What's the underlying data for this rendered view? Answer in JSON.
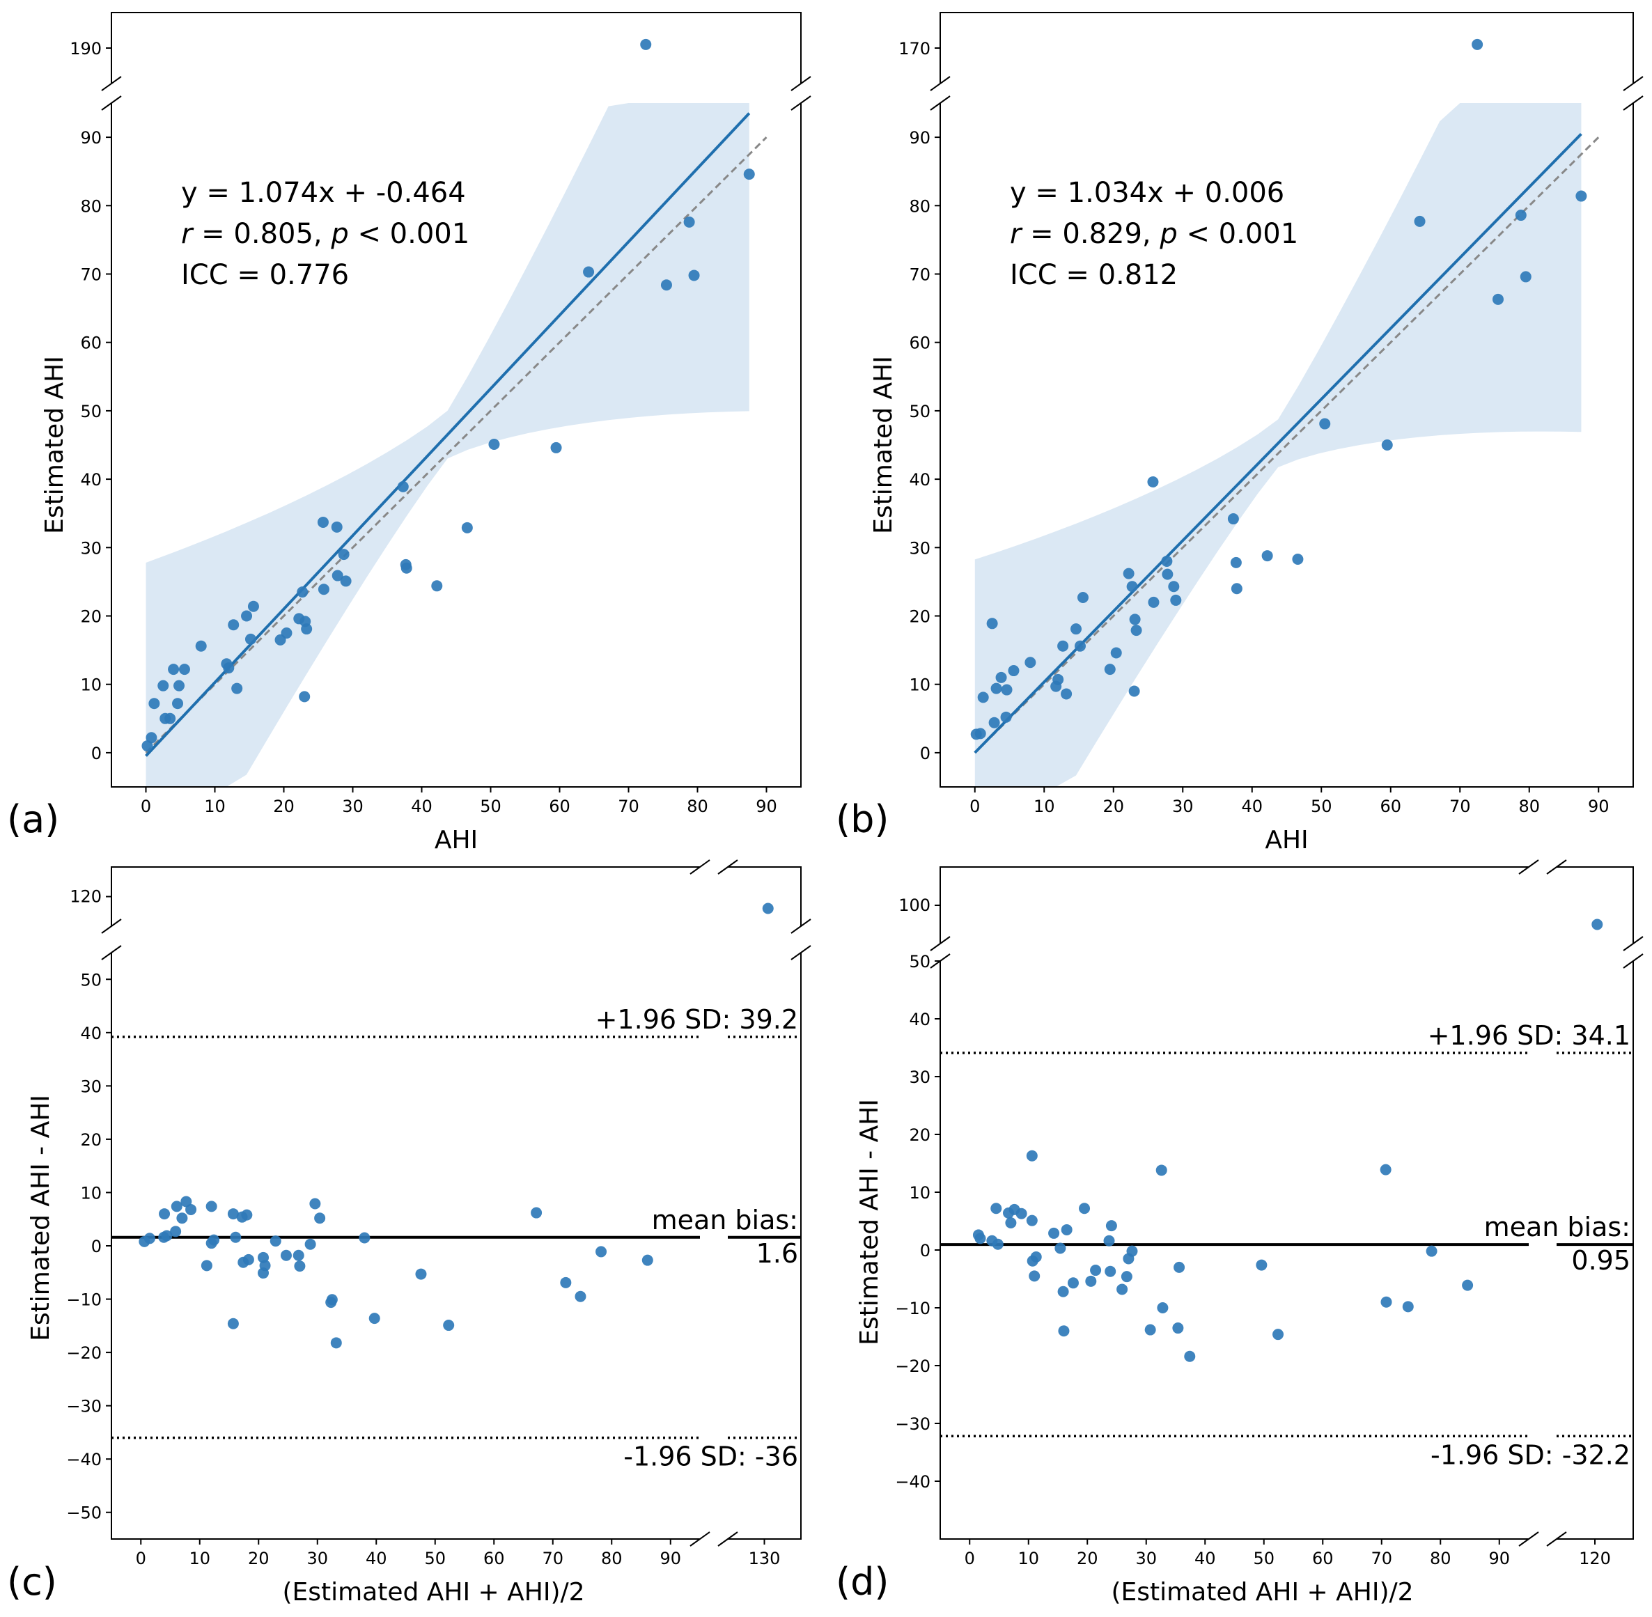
{
  "chart_data": [
    {
      "type": "scatter",
      "panel_label": "(a)",
      "xlabel": "AHI",
      "ylabel": "Estimated AHI",
      "xlim": [
        -5,
        95
      ],
      "ylim": [
        -5,
        95
      ],
      "ylim_break": [
        185,
        195
      ],
      "xticks": [
        "0",
        "10",
        "20",
        "30",
        "40",
        "50",
        "60",
        "70",
        "80",
        "90"
      ],
      "yticks": [
        "0",
        "10",
        "20",
        "30",
        "40",
        "50",
        "60",
        "70",
        "80",
        "90"
      ],
      "yticks_break": [
        "190"
      ],
      "equation": "y = 1.074x + -0.464",
      "r_text": "r",
      "stats_text": " = 0.805, ",
      "p_text": "p",
      "p_value_text": " < 0.001",
      "icc_text": "ICC = 0.776",
      "regression": {
        "slope": 1.074,
        "intercept": -0.464,
        "x_range": [
          0,
          87.5
        ]
      },
      "identity_line": {
        "x_range": [
          0,
          90
        ]
      },
      "points": [
        [
          0.2,
          1
        ],
        [
          0.8,
          2.2
        ],
        [
          1.2,
          7.2
        ],
        [
          2.5,
          9.8
        ],
        [
          2.8,
          5
        ],
        [
          3.5,
          5
        ],
        [
          4,
          12.2
        ],
        [
          4.6,
          7.2
        ],
        [
          4.8,
          9.8
        ],
        [
          5.6,
          12.2
        ],
        [
          8,
          15.6
        ],
        [
          11.7,
          13
        ],
        [
          12,
          12.4
        ],
        [
          12.7,
          18.7
        ],
        [
          13.2,
          9.4
        ],
        [
          14.6,
          20
        ],
        [
          15.2,
          16.6
        ],
        [
          15.6,
          21.4
        ],
        [
          19.5,
          16.5
        ],
        [
          20.4,
          17.5
        ],
        [
          22.2,
          19.6
        ],
        [
          22.7,
          23.5
        ],
        [
          23,
          8.2
        ],
        [
          23.1,
          19.2
        ],
        [
          23.3,
          18.1
        ],
        [
          25.7,
          33.7
        ],
        [
          25.8,
          23.9
        ],
        [
          27.7,
          33
        ],
        [
          27.8,
          25.9
        ],
        [
          28.7,
          29
        ],
        [
          29,
          25.1
        ],
        [
          37.3,
          38.9
        ],
        [
          37.7,
          27.5
        ],
        [
          37.8,
          27
        ],
        [
          42.2,
          24.4
        ],
        [
          46.6,
          32.9
        ],
        [
          50.5,
          45.1
        ],
        [
          59.5,
          44.6
        ],
        [
          64.2,
          70.3
        ],
        [
          75.5,
          68.4
        ],
        [
          78.8,
          77.6
        ],
        [
          79.5,
          69.8
        ],
        [
          87.5,
          84.6
        ]
      ],
      "outliers": [
        [
          72.5,
          190.5
        ]
      ]
    },
    {
      "type": "scatter",
      "panel_label": "(b)",
      "xlabel": "AHI",
      "ylabel": "Estimated AHI",
      "xlim": [
        -5,
        95
      ],
      "ylim": [
        -5,
        95
      ],
      "ylim_break": [
        165,
        175
      ],
      "xticks": [
        "0",
        "10",
        "20",
        "30",
        "40",
        "50",
        "60",
        "70",
        "80",
        "90"
      ],
      "yticks": [
        "0",
        "10",
        "20",
        "30",
        "40",
        "50",
        "60",
        "70",
        "80",
        "90"
      ],
      "yticks_break": [
        "170"
      ],
      "equation": "y = 1.034x + 0.006",
      "r_text": "r",
      "stats_text": " = 0.829, ",
      "p_text": "p",
      "p_value_text": " < 0.001",
      "icc_text": "ICC = 0.812",
      "regression": {
        "slope": 1.034,
        "intercept": 0.006,
        "x_range": [
          0,
          87.5
        ]
      },
      "identity_line": {
        "x_range": [
          0,
          90
        ]
      },
      "points": [
        [
          0.2,
          2.7
        ],
        [
          0.8,
          2.8
        ],
        [
          1.2,
          8.1
        ],
        [
          2.5,
          18.9
        ],
        [
          2.8,
          4.4
        ],
        [
          3.1,
          9.4
        ],
        [
          3.8,
          11
        ],
        [
          4.5,
          5.2
        ],
        [
          4.6,
          9.2
        ],
        [
          5.6,
          12
        ],
        [
          8,
          13.2
        ],
        [
          11.7,
          9.7
        ],
        [
          12,
          10.7
        ],
        [
          12.7,
          15.6
        ],
        [
          13.2,
          8.6
        ],
        [
          14.6,
          18.1
        ],
        [
          15.2,
          15.6
        ],
        [
          15.6,
          22.7
        ],
        [
          19.5,
          12.2
        ],
        [
          20.4,
          14.6
        ],
        [
          22.2,
          26.2
        ],
        [
          22.7,
          24.3
        ],
        [
          23,
          9
        ],
        [
          23.1,
          19.5
        ],
        [
          23.3,
          17.9
        ],
        [
          25.7,
          39.6
        ],
        [
          25.8,
          22
        ],
        [
          27.7,
          28
        ],
        [
          27.8,
          26.1
        ],
        [
          28.7,
          24.3
        ],
        [
          29,
          22.3
        ],
        [
          37.3,
          34.2
        ],
        [
          37.7,
          27.8
        ],
        [
          37.8,
          24
        ],
        [
          42.2,
          28.8
        ],
        [
          46.6,
          28.3
        ],
        [
          50.5,
          48.1
        ],
        [
          59.5,
          45
        ],
        [
          64.2,
          77.7
        ],
        [
          75.5,
          66.3
        ],
        [
          78.8,
          78.6
        ],
        [
          79.5,
          69.6
        ],
        [
          87.5,
          81.4
        ]
      ],
      "outliers": [
        [
          72.5,
          170.5
        ]
      ]
    },
    {
      "type": "scatter",
      "panel_label": "(c)",
      "xlabel": "(Estimated AHI + AHI)/2",
      "ylabel": "Estimated AHI - AHI",
      "xlim": [
        -5,
        95
      ],
      "xlim_break": [
        125,
        135
      ],
      "ylim": [
        -55,
        55
      ],
      "ylim_break": [
        115,
        125
      ],
      "xticks": [
        "0",
        "10",
        "20",
        "30",
        "40",
        "50",
        "60",
        "70",
        "80",
        "90"
      ],
      "xticks_break": [
        "130"
      ],
      "yticks": [
        "−50",
        "−40",
        "−30",
        "−20",
        "−10",
        "0",
        "10",
        "20",
        "30",
        "40",
        "50"
      ],
      "yticks_break": [
        "120"
      ],
      "mean_bias": 1.6,
      "upper_loa": 39.2,
      "lower_loa": -36,
      "upper_label": "+1.96 SD: 39.2",
      "mean_label_1": "mean bias:",
      "mean_label_2": "1.6",
      "lower_label": "-1.96 SD: -36",
      "points": [
        [
          0.6,
          0.8
        ],
        [
          1.5,
          1.4
        ],
        [
          3.9,
          1.6
        ],
        [
          4,
          6
        ],
        [
          4.4,
          1.9
        ],
        [
          5.9,
          2.7
        ],
        [
          6.1,
          7.4
        ],
        [
          7,
          5.2
        ],
        [
          7.7,
          8.3
        ],
        [
          8.5,
          6.8
        ],
        [
          11.2,
          -3.7
        ],
        [
          12,
          0.5
        ],
        [
          12,
          7.4
        ],
        [
          12.4,
          1.1
        ],
        [
          15.7,
          -14.6
        ],
        [
          15.7,
          6
        ],
        [
          16.1,
          1.6
        ],
        [
          17.2,
          5.4
        ],
        [
          17.4,
          -3.1
        ],
        [
          18,
          5.8
        ],
        [
          18.3,
          -2.6
        ],
        [
          20.8,
          -5.1
        ],
        [
          20.8,
          -2.2
        ],
        [
          21.1,
          -3.7
        ],
        [
          22.9,
          0.9
        ],
        [
          24.7,
          -1.8
        ],
        [
          26.8,
          -1.8
        ],
        [
          27,
          -3.8
        ],
        [
          28.8,
          0.3
        ],
        [
          29.6,
          7.9
        ],
        [
          30.4,
          5.2
        ],
        [
          32.3,
          -10.6
        ],
        [
          32.5,
          -10.1
        ],
        [
          33.2,
          -18.2
        ],
        [
          38,
          1.5
        ],
        [
          39.7,
          -13.6
        ],
        [
          47.6,
          -5.3
        ],
        [
          52.3,
          -14.9
        ],
        [
          67.2,
          6.2
        ],
        [
          72.2,
          -6.9
        ],
        [
          74.7,
          -9.5
        ],
        [
          78.2,
          -1.1
        ],
        [
          86.1,
          -2.7
        ]
      ],
      "outliers": [
        [
          130.5,
          118
        ]
      ]
    },
    {
      "type": "scatter",
      "panel_label": "(d)",
      "xlabel": "(Estimated AHI + AHI)/2",
      "ylabel": "Estimated AHI - AHI",
      "xlim": [
        -5,
        95
      ],
      "xlim_break": [
        115,
        125
      ],
      "ylim": [
        -50,
        50
      ],
      "ylim_break": [
        95,
        105
      ],
      "xticks": [
        "0",
        "10",
        "20",
        "30",
        "40",
        "50",
        "60",
        "70",
        "80",
        "90"
      ],
      "xticks_break": [
        "120"
      ],
      "yticks": [
        "−40",
        "−30",
        "−20",
        "−10",
        "0",
        "10",
        "20",
        "30",
        "40",
        "50"
      ],
      "yticks_break": [
        "100"
      ],
      "mean_bias": 0.95,
      "upper_loa": 34.1,
      "lower_loa": -32.2,
      "upper_label": "+1.96 SD: 34.1",
      "mean_label_1": "mean bias:",
      "mean_label_2": "0.95",
      "lower_label": "-1.96 SD: -32.2",
      "points": [
        [
          1.5,
          2.6
        ],
        [
          1.8,
          2
        ],
        [
          3.8,
          1.6
        ],
        [
          4.5,
          7.2
        ],
        [
          4.8,
          1
        ],
        [
          6.6,
          6.4
        ],
        [
          7,
          4.7
        ],
        [
          7.6,
          7
        ],
        [
          8.8,
          6.3
        ],
        [
          10.6,
          16.3
        ],
        [
          10.6,
          5.1
        ],
        [
          10.7,
          -1.9
        ],
        [
          11,
          -4.5
        ],
        [
          11.3,
          -1.2
        ],
        [
          14.3,
          2.9
        ],
        [
          15.4,
          0.3
        ],
        [
          15.9,
          -7.2
        ],
        [
          16,
          -14
        ],
        [
          16.5,
          3.5
        ],
        [
          17.6,
          -5.7
        ],
        [
          19.5,
          7.2
        ],
        [
          20.6,
          -5.4
        ],
        [
          21.4,
          -3.5
        ],
        [
          23.7,
          1.6
        ],
        [
          23.9,
          -3.7
        ],
        [
          24.1,
          4.2
        ],
        [
          25.9,
          -6.8
        ],
        [
          26.7,
          -4.6
        ],
        [
          27,
          -1.5
        ],
        [
          27.6,
          -0.2
        ],
        [
          30.7,
          -13.8
        ],
        [
          32.6,
          13.8
        ],
        [
          32.8,
          -10
        ],
        [
          35.4,
          -13.5
        ],
        [
          35.6,
          -3
        ],
        [
          37.4,
          -18.4
        ],
        [
          49.6,
          -2.6
        ],
        [
          52.4,
          -14.6
        ],
        [
          70.7,
          13.9
        ],
        [
          70.8,
          -9
        ],
        [
          74.5,
          -9.8
        ],
        [
          78.5,
          -0.2
        ],
        [
          84.6,
          -6.1
        ]
      ],
      "outliers": [
        [
          120.3,
          97.5
        ]
      ]
    }
  ]
}
